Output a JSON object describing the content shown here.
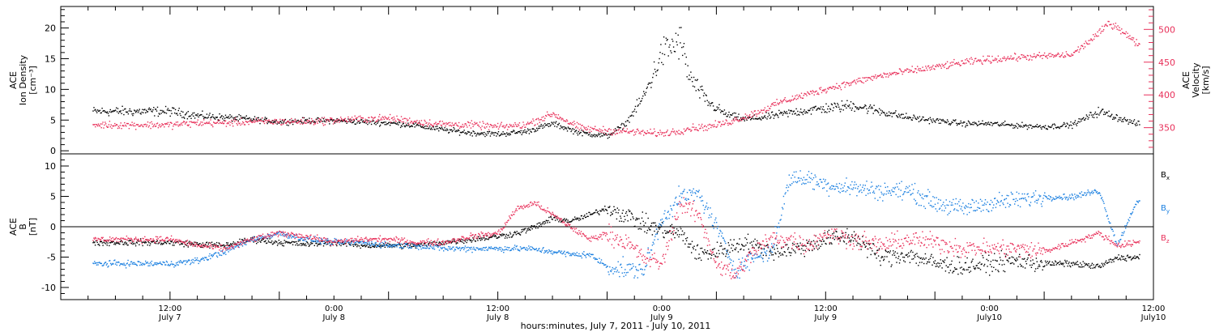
{
  "chart_data": [
    {
      "type": "scatter",
      "panel": "top",
      "ylabel_left": [
        "ACE",
        "Ion Density",
        "[cm⁻³]"
      ],
      "ylabel_right": [
        "ACE",
        "Velocity",
        "[km/s]"
      ],
      "left_ticks": [
        0,
        5,
        10,
        15,
        20
      ],
      "right_ticks": [
        350,
        400,
        450,
        500
      ],
      "ylim_left": [
        -0.5,
        23.5
      ],
      "ylim_right": [
        310,
        535
      ],
      "colors": {
        "density": "#000000",
        "velocity": "#e8305a"
      },
      "series": [
        {
          "axis": "left",
          "x_hours": [
            0,
            3,
            6,
            9,
            12,
            15,
            18,
            21,
            24,
            27,
            30,
            33,
            36,
            39,
            42,
            45,
            48,
            50,
            52,
            54,
            56,
            57,
            59,
            61,
            63,
            65,
            67,
            69,
            72,
            75,
            78,
            81,
            84,
            87,
            90,
            93,
            96,
            99,
            102,
            104,
            106
          ],
          "values": [
            6.5,
            5.8,
            5.5,
            5.2,
            4.8,
            5,
            5,
            4.8,
            4.6,
            4.2,
            3.5,
            3,
            2.8,
            3.2,
            4.5,
            3,
            2.5,
            4.5,
            9,
            16,
            18,
            12,
            8,
            6,
            5.2,
            5.5,
            6,
            6.5,
            7,
            7.5,
            6.5,
            5.5,
            5,
            4.5,
            4.5,
            4.2,
            4,
            4.3,
            6.5,
            5.5,
            4.5
          ]
        },
        {
          "axis": "right",
          "x_hours": [
            0,
            3,
            6,
            9,
            12,
            15,
            18,
            21,
            24,
            27,
            30,
            33,
            36,
            39,
            42,
            45,
            48,
            50,
            52,
            54,
            56,
            57,
            59,
            61,
            63,
            65,
            67,
            69,
            72,
            75,
            78,
            81,
            84,
            87,
            90,
            93,
            96,
            99,
            102,
            103,
            104,
            106
          ],
          "values": [
            355,
            358,
            358,
            360,
            360,
            360,
            362,
            364,
            365,
            360,
            356,
            355,
            352,
            355,
            372,
            350,
            346,
            345,
            343,
            342,
            346,
            350,
            352,
            358,
            367,
            377,
            390,
            398,
            410,
            420,
            430,
            437,
            443,
            450,
            455,
            458,
            460,
            462,
            495,
            510,
            505,
            480
          ]
        }
      ]
    },
    {
      "type": "scatter",
      "panel": "bottom",
      "ylabel": [
        "ACE",
        "B",
        "[nT]"
      ],
      "ticks": [
        -10,
        -5,
        0,
        5,
        10
      ],
      "ylim": [
        -12,
        12
      ],
      "colors": {
        "Bx": "#000000",
        "By": "#1a7fe0",
        "Bz": "#e8305a"
      },
      "x_axis": {
        "xlim_hours": [
          -12,
          108
        ],
        "tick_hours": [
          0,
          12,
          24,
          36,
          48,
          60,
          72,
          84,
          96,
          108
        ],
        "tick_labels_top": [
          "12:00",
          "0:00",
          "12:00",
          "0:00",
          "12:00",
          "0:00",
          "12:00"
        ],
        "tick_labels_bottom": [
          "July 7",
          "July 8",
          "July 8",
          "July 9",
          "July 9",
          "July10",
          "July10"
        ],
        "xlabel": "hours:minutes, July  7, 2011 - July 10, 2011"
      },
      "series": [
        {
          "name": "B",
          "subscript": "x",
          "x_hours": [
            0,
            3,
            6,
            9,
            12,
            15,
            18,
            21,
            24,
            27,
            30,
            33,
            36,
            38,
            40,
            42,
            44,
            46,
            48,
            50,
            52,
            54,
            56,
            58,
            60,
            63,
            66,
            69,
            72,
            75,
            78,
            81,
            84,
            87,
            90,
            93,
            96,
            99,
            102,
            104,
            106
          ],
          "values": [
            -2.5,
            -2.8,
            -3,
            -2,
            -2.5,
            -2.8,
            -2.5,
            -3,
            -3,
            -3,
            -2.5,
            -2,
            -1.5,
            -1,
            0,
            1.5,
            1,
            2,
            3.2,
            2,
            0.5,
            -0.5,
            -1,
            -4.5,
            -4,
            -2.5,
            -4,
            -3.5,
            -2,
            -1.5,
            -5,
            -4.5,
            -6,
            -6.5,
            -6,
            -5.5,
            -6,
            -6,
            -6.5,
            -5,
            -5
          ]
        },
        {
          "name": "B",
          "subscript": "y",
          "x_hours": [
            0,
            3,
            6,
            9,
            12,
            15,
            18,
            21,
            24,
            27,
            30,
            33,
            36,
            39,
            42,
            44,
            46,
            48,
            50,
            52,
            54,
            56,
            58,
            60,
            62,
            64,
            66,
            68,
            70,
            72,
            75,
            78,
            81,
            84,
            87,
            90,
            93,
            96,
            99,
            102,
            104,
            106
          ],
          "values": [
            -6,
            -5.5,
            -4,
            -2,
            -1,
            -2,
            -2.5,
            -2.5,
            -3,
            -3,
            -3.5,
            -3.5,
            -3.5,
            -3.5,
            -4,
            -4.5,
            -4.5,
            -6.5,
            -7,
            -7,
            1.5,
            5,
            5.5,
            0,
            -7,
            -5,
            -4,
            8,
            8,
            7,
            6.5,
            6,
            6,
            4,
            3,
            4,
            4.5,
            5,
            5,
            6,
            -3,
            4
          ]
        },
        {
          "name": "B",
          "subscript": "z",
          "x_hours": [
            0,
            3,
            6,
            9,
            12,
            15,
            18,
            21,
            24,
            27,
            30,
            33,
            36,
            38,
            40,
            42,
            44,
            46,
            48,
            50,
            52,
            54,
            56,
            58,
            60,
            62,
            64,
            66,
            68,
            70,
            72,
            75,
            78,
            81,
            84,
            87,
            90,
            93,
            96,
            99,
            102,
            104,
            106
          ],
          "values": [
            -2,
            -3,
            -3.5,
            -2,
            -1,
            -1.5,
            -2.5,
            -2,
            -2,
            -2.5,
            -2.5,
            -1.5,
            -1,
            3,
            4,
            2,
            0,
            -2,
            -1,
            -2.5,
            -5,
            -6,
            4,
            2,
            -6,
            -8,
            -4,
            -2,
            -2,
            -3,
            -1,
            -2,
            -3,
            -2,
            -2.5,
            -3.5,
            -3.5,
            -3.5,
            -4,
            -2.5,
            -1,
            -3,
            -2.5
          ]
        }
      ]
    }
  ]
}
